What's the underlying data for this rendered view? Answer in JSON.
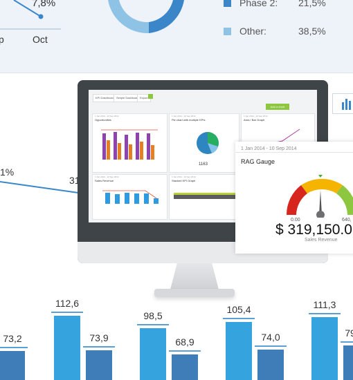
{
  "top_panel": {
    "line_value": "7,8%",
    "x_labels": [
      "p",
      "Oct"
    ],
    "legend": [
      {
        "label": "Phase 2:",
        "value": "21,5%",
        "color": "#3a86c8"
      },
      {
        "label": "Other:",
        "value": "38,5%",
        "color": "#8ec3e6"
      }
    ]
  },
  "mid_labels": {
    "left": "1%",
    "right": "31"
  },
  "monitor": {
    "tabs": [
      "KPI Dashboard",
      "Simple Dashboard",
      "Export"
    ],
    "add_chart": "Add a chart",
    "widgets": [
      {
        "date": "1 Jan 2014 - 10 Sep 2014",
        "title": "Opportunities"
      },
      {
        "date": "1 Jan 2014 - 10 Sep 2014",
        "title": "Pie chart with multiple KPIs",
        "value": "1163"
      },
      {
        "date": "1 Jan 2014 - 10 Sep 2014",
        "title": "Area / Bar Graph"
      },
      {
        "date": "1 Jan 2014 - 10 Sep 2014",
        "title": "Sales Revenue"
      },
      {
        "date": "1 Jan 2014 - 10 Sep 2014",
        "title": "Stacked KPI Graph"
      }
    ]
  },
  "rag": {
    "date": "1 Jan 2014 - 10 Sep 2014",
    "title": "RAG Gauge",
    "min": "0.00",
    "max": "640,",
    "value": "$ 319,150.0",
    "caption": "Sales Revenue"
  },
  "colors": {
    "bar_dark": "#3f7db8",
    "bar_light": "#35a3de",
    "ref_line": "#5aa0d6",
    "accent": "#8dc63f"
  },
  "chart_data": {
    "type": "bar",
    "series": [
      {
        "values": [
          73.2,
          73.9,
          68.9,
          74.0,
          79
        ]
      },
      {
        "values": [
          112.6,
          98.5,
          105.4,
          111.3
        ]
      }
    ],
    "value_labels": [
      "73,2",
      "112,6",
      "73,9",
      "98,5",
      "68,9",
      "105,4",
      "74,0",
      "111,3",
      "79"
    ]
  }
}
